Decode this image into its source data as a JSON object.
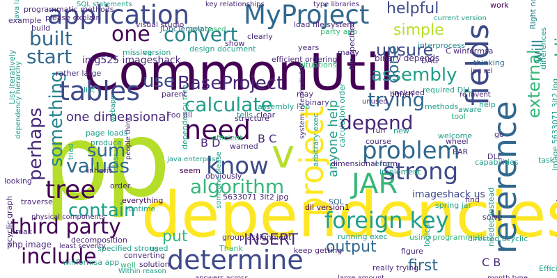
{
  "palette": {
    "purple": "#440154",
    "indigo": "#482878",
    "blue": "#3e4a89",
    "slate": "#31688e",
    "teal": "#26828e",
    "green": "#1f9e89",
    "emerald": "#35b779",
    "lime": "#6ece58",
    "yellowgreen": "#b5de2b",
    "yellow": "#fde725"
  },
  "words": [
    {
      "text": "p",
      "color": "yellowgreen"
    },
    {
      "text": "p",
      "color": "yellowgreen"
    },
    {
      "text": "dependencies",
      "color": "yellow"
    },
    {
      "text": "CommonUtil",
      "color": "purple"
    },
    {
      "text": "reference",
      "color": "slate"
    },
    {
      "text": "project",
      "color": "yellow"
    },
    {
      "text": "fields",
      "color": "blue"
    },
    {
      "text": "application",
      "color": "blue"
    },
    {
      "text": "MyProject",
      "color": "slate"
    },
    {
      "text": "tables",
      "color": "blue"
    },
    {
      "text": "need",
      "color": "purple"
    },
    {
      "text": "determine",
      "color": "blue"
    },
    {
      "text": "v",
      "color": "yellowgreen"
    },
    {
      "text": "JAR",
      "color": "emerald"
    },
    {
      "text": "know",
      "color": "blue"
    },
    {
      "text": "tree",
      "color": "purple"
    },
    {
      "text": "problem",
      "color": "slate"
    },
    {
      "text": "strong",
      "color": "blue"
    },
    {
      "text": "foreign key",
      "color": "green"
    },
    {
      "text": "third party",
      "color": "purple"
    },
    {
      "text": "include",
      "color": "purple"
    },
    {
      "text": "one",
      "color": "purple"
    },
    {
      "text": "convert",
      "color": "teal"
    },
    {
      "text": "built",
      "color": "slate"
    },
    {
      "text": "start",
      "color": "slate"
    },
    {
      "text": "algorithm",
      "color": "emerald"
    },
    {
      "text": "values",
      "color": "slate"
    },
    {
      "text": "calculate",
      "color": "green"
    },
    {
      "text": "trying",
      "color": "slate"
    },
    {
      "text": "depend",
      "color": "indigo"
    },
    {
      "text": "BaseProject",
      "color": "indigo"
    },
    {
      "text": "use",
      "color": "blue"
    },
    {
      "text": "assemblies",
      "color": "green"
    },
    {
      "text": "external",
      "color": "emerald"
    },
    {
      "text": "assembly",
      "color": "green"
    },
    {
      "text": "unsure",
      "color": "blue"
    },
    {
      "text": "done",
      "color": "slate"
    },
    {
      "text": "simple",
      "color": "yellowgreen"
    },
    {
      "text": "helpful",
      "color": "blue"
    },
    {
      "text": "will",
      "color": "teal"
    },
    {
      "text": "sum",
      "color": "slate"
    },
    {
      "text": "something",
      "color": "teal"
    },
    {
      "text": "perhaps",
      "color": "indigo"
    },
    {
      "text": "contain",
      "color": "green"
    },
    {
      "text": "output",
      "color": "slate"
    },
    {
      "text": "first",
      "color": "slate"
    },
    {
      "text": "INSERT",
      "color": "indigo"
    },
    {
      "text": "put",
      "color": "emerald"
    },
    {
      "text": "anyone help",
      "color": "green"
    },
    {
      "text": "one dimensional",
      "color": "indigo"
    },
    {
      "text": "B D",
      "color": "indigo"
    },
    {
      "text": "B C",
      "color": "indigo"
    },
    {
      "text": "C B",
      "color": "indigo"
    },
    {
      "text": "imageshack us",
      "color": "blue"
    },
    {
      "text": "image 5633071 3it2 jpg",
      "color": "green"
    },
    {
      "text": "img525 imageshack",
      "color": "indigo"
    },
    {
      "text": "5633071 3it2 jpg",
      "color": "indigo"
    },
    {
      "text": "binary depends",
      "color": "indigo"
    },
    {
      "text": "dependency tree",
      "color": "green"
    },
    {
      "text": "dll version1",
      "color": "purple"
    },
    {
      "text": "spring jar",
      "color": "green"
    },
    {
      "text": "running exec",
      "color": "green"
    },
    {
      "text": "php image",
      "color": "indigo"
    },
    {
      "text": "specified strong",
      "color": "green"
    },
    {
      "text": "winformsa app",
      "color": "green"
    },
    {
      "text": "acyclic graph",
      "color": "indigo"
    },
    {
      "text": "List iteratively",
      "color": "green"
    },
    {
      "text": "programmatic methods",
      "color": "indigo"
    },
    {
      "text": "JDbcTemplate",
      "color": "slate"
    },
    {
      "text": "visual studio",
      "color": "indigo"
    },
    {
      "text": "clearly",
      "color": "indigo"
    },
    {
      "text": "load file system",
      "color": "indigo"
    },
    {
      "text": "party app",
      "color": "emerald"
    },
    {
      "text": "work",
      "color": "purple"
    },
    {
      "text": "interprocess",
      "color": "teal"
    },
    {
      "text": "C winformsa",
      "color": "indigo"
    },
    {
      "text": "DAG",
      "color": "indigo"
    },
    {
      "text": "thinking",
      "color": "slate"
    },
    {
      "text": "Right now",
      "color": "teal"
    },
    {
      "text": "differences",
      "color": "green"
    },
    {
      "text": "missing",
      "color": "green"
    },
    {
      "text": "version",
      "color": "green"
    },
    {
      "text": "design document",
      "color": "green"
    },
    {
      "text": "show",
      "color": "indigo"
    },
    {
      "text": "situations",
      "color": "emerald"
    },
    {
      "text": "years",
      "color": "indigo"
    },
    {
      "text": "many",
      "color": "indigo"
    },
    {
      "text": "bunch",
      "color": "indigo"
    },
    {
      "text": "required DLL",
      "color": "green"
    },
    {
      "text": "included",
      "color": "indigo"
    },
    {
      "text": "methods",
      "color": "green"
    },
    {
      "text": "aware",
      "color": "green"
    },
    {
      "text": "help",
      "color": "green"
    },
    {
      "text": "go",
      "color": "indigo"
    },
    {
      "text": "wheel",
      "color": "indigo"
    },
    {
      "text": "EAR",
      "color": "indigo"
    },
    {
      "text": "DLL",
      "color": "indigo"
    },
    {
      "text": "capabilities",
      "color": "green"
    },
    {
      "text": "task",
      "color": "green"
    },
    {
      "text": "welcome",
      "color": "green"
    },
    {
      "text": "tool",
      "color": "emerald"
    },
    {
      "text": "new",
      "color": "green"
    },
    {
      "text": "run",
      "color": "indigo"
    },
    {
      "text": "course",
      "color": "indigo"
    },
    {
      "text": "error",
      "color": "green"
    },
    {
      "text": "implement",
      "color": "green"
    },
    {
      "text": "dimensional form",
      "color": "indigo"
    },
    {
      "text": "find",
      "color": "indigo"
    },
    {
      "text": "solve",
      "color": "indigo"
    },
    {
      "text": "SQL",
      "color": "slate"
    },
    {
      "text": "using programmatic",
      "color": "emerald"
    },
    {
      "text": "logical",
      "color": "green"
    },
    {
      "text": "needed instead",
      "color": "green"
    },
    {
      "text": "directed acyclic",
      "color": "green"
    },
    {
      "text": "figure",
      "color": "indigo"
    },
    {
      "text": "traversed",
      "color": "indigo"
    },
    {
      "text": "Efficient calculation",
      "color": "green"
    },
    {
      "text": "really trying",
      "color": "indigo"
    },
    {
      "text": "group assignment",
      "color": "indigo"
    },
    {
      "text": "Thank",
      "color": "emerald"
    },
    {
      "text": "keep getting",
      "color": "indigo"
    },
    {
      "text": "tells",
      "color": "green"
    },
    {
      "text": "Foo dll",
      "color": "indigo"
    },
    {
      "text": "assembly Foo",
      "color": "green"
    },
    {
      "text": "clear",
      "color": "indigo"
    },
    {
      "text": "structure",
      "color": "indigo"
    },
    {
      "text": "may",
      "color": "indigo"
    },
    {
      "text": "binary",
      "color": "indigo"
    },
    {
      "text": "efficient",
      "color": "emerald"
    },
    {
      "text": "warned",
      "color": "indigo"
    },
    {
      "text": "obviously",
      "color": "indigo"
    },
    {
      "text": "runtime",
      "color": "green"
    },
    {
      "text": "everything",
      "color": "purple"
    },
    {
      "text": "seem",
      "color": "purple"
    },
    {
      "text": "used",
      "color": "green"
    },
    {
      "text": "converting",
      "color": "indigo"
    },
    {
      "text": "solution",
      "color": "indigo"
    },
    {
      "text": "well",
      "color": "emerald"
    },
    {
      "text": "decomposition",
      "color": "indigo"
    },
    {
      "text": "break",
      "color": "indigo"
    },
    {
      "text": "traverse",
      "color": "indigo"
    },
    {
      "text": "looking",
      "color": "indigo"
    },
    {
      "text": "order",
      "color": "indigo"
    },
    {
      "text": "inherit",
      "color": "indigo"
    },
    {
      "text": "produce",
      "color": "green"
    },
    {
      "text": "page loads",
      "color": "green"
    },
    {
      "text": "example",
      "color": "indigo"
    },
    {
      "text": "build",
      "color": "indigo"
    },
    {
      "text": "list",
      "color": "green"
    },
    {
      "text": "parent",
      "color": "indigo"
    },
    {
      "text": "calculation order",
      "color": "green"
    },
    {
      "text": "file specified",
      "color": "indigo"
    },
    {
      "text": "arbitrary exec",
      "color": "green"
    },
    {
      "text": "efficient ordering",
      "color": "indigo"
    },
    {
      "text": "please explain",
      "color": "indigo"
    },
    {
      "text": "rather large",
      "color": "indigo"
    },
    {
      "text": "least seventy",
      "color": "indigo"
    },
    {
      "text": "java enterprise",
      "color": "green"
    },
    {
      "text": "physical components",
      "color": "indigo"
    },
    {
      "text": "system intermediate",
      "color": "indigo"
    },
    {
      "text": "type libraries",
      "color": "indigo"
    },
    {
      "text": "key relationships",
      "color": "indigo"
    },
    {
      "text": "current version",
      "color": "green"
    },
    {
      "text": "someone please",
      "color": "green"
    },
    {
      "text": "answers across",
      "color": "indigo"
    },
    {
      "text": "large amount",
      "color": "indigo"
    },
    {
      "text": "month type",
      "color": "indigo"
    },
    {
      "text": "jpg rel",
      "color": "indigo"
    },
    {
      "text": "Within reason",
      "color": "green"
    },
    {
      "text": "webapp",
      "color": "green"
    },
    {
      "text": "class",
      "color": "green"
    },
    {
      "text": "tried",
      "color": "green"
    },
    {
      "text": "people think",
      "color": "indigo"
    },
    {
      "text": "SQL statements",
      "color": "green"
    },
    {
      "text": "Java languages",
      "color": "green"
    },
    {
      "text": "unused",
      "color": "indigo"
    },
    {
      "text": "re invent",
      "color": "indigo"
    },
    {
      "text": "dependency hierarchy",
      "color": "green"
    },
    {
      "text": "Java based",
      "color": "emerald"
    }
  ]
}
